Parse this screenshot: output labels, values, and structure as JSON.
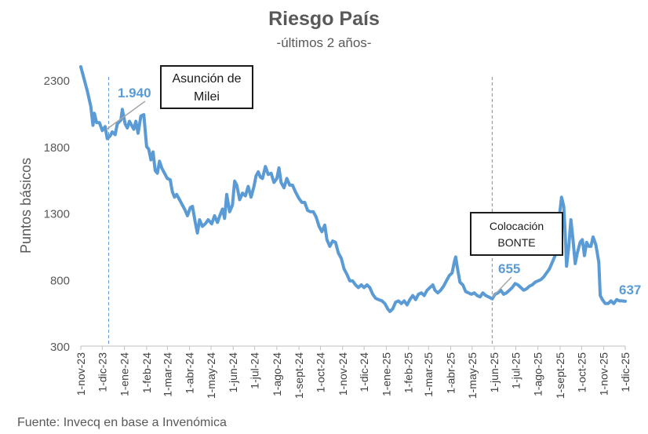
{
  "title": "Riesgo País",
  "subtitle": "-últimos 2 años-",
  "source": "Fuente: Invecq en base a Invenómica",
  "colors": {
    "line": "#5b9bd5",
    "axis": "#bfbfbf",
    "text": "#595959"
  },
  "annotations": {
    "milei": {
      "label": "Asunción de Milei",
      "value_label": "1.940",
      "date": "2023-12-10",
      "value": 1940
    },
    "bonte": {
      "label": "Colocación BONTE",
      "value_label": "655",
      "date": "2025-05-29",
      "value": 655
    },
    "last": {
      "value_label": "637",
      "date": "2025-12-01",
      "value": 637
    }
  },
  "chart_data": {
    "type": "line",
    "title": "Riesgo País",
    "subtitle": "-últimos 2 años-",
    "xlabel": "",
    "ylabel": "Puntos básicos",
    "ylim": [
      300,
      2300
    ],
    "yticks": [
      300,
      800,
      1300,
      1800,
      2300
    ],
    "xlim": [
      "2023-11-01",
      "2025-12-01"
    ],
    "xtick_dates": [
      "2023-11-01",
      "2023-12-01",
      "2024-01-01",
      "2024-02-01",
      "2024-03-01",
      "2024-04-01",
      "2024-05-01",
      "2024-06-01",
      "2024-07-01",
      "2024-08-01",
      "2024-09-01",
      "2024-10-01",
      "2024-11-01",
      "2024-12-01",
      "2025-01-01",
      "2025-02-01",
      "2025-03-01",
      "2025-04-01",
      "2025-05-01",
      "2025-06-01",
      "2025-07-01",
      "2025-08-01",
      "2025-09-01",
      "2025-10-01",
      "2025-11-01",
      "2025-12-01"
    ],
    "xtick_labels": [
      "1-nov-23",
      "1-dic-23",
      "1-ene-24",
      "1-feb-24",
      "1-mar-24",
      "1-abr-24",
      "1-may-24",
      "1-jun-24",
      "1-jul-24",
      "1-ago-24",
      "1-sept-24",
      "1-oct-24",
      "1-nov-24",
      "1-dic-24",
      "1-ene-25",
      "1-feb-25",
      "1-mar-25",
      "1-abr-25",
      "1-may-25",
      "1-jun-25",
      "1-jul-25",
      "1-ago-25",
      "1-sept-25",
      "1-oct-25",
      "1-nov-25",
      "1-dic-25"
    ],
    "grid": false,
    "legend": "none",
    "series": [
      {
        "points": [
          [
            "2023-11-01",
            2400
          ],
          [
            "2023-11-03",
            2360
          ],
          [
            "2023-11-10",
            2220
          ],
          [
            "2023-11-15",
            2100
          ],
          [
            "2023-11-18",
            1960
          ],
          [
            "2023-11-20",
            2050
          ],
          [
            "2023-11-23",
            1980
          ],
          [
            "2023-11-27",
            1980
          ],
          [
            "2023-12-01",
            1920
          ],
          [
            "2023-12-05",
            1950
          ],
          [
            "2023-12-08",
            1860
          ],
          [
            "2023-12-12",
            1880
          ],
          [
            "2023-12-15",
            1910
          ],
          [
            "2023-12-19",
            1890
          ],
          [
            "2023-12-22",
            1970
          ],
          [
            "2023-12-27",
            2000
          ],
          [
            "2023-12-29",
            2080
          ],
          [
            "2024-01-02",
            1970
          ],
          [
            "2024-01-05",
            1940
          ],
          [
            "2024-01-08",
            1990
          ],
          [
            "2024-01-11",
            1960
          ],
          [
            "2024-01-14",
            1930
          ],
          [
            "2024-01-17",
            1990
          ],
          [
            "2024-01-20",
            1900
          ],
          [
            "2024-01-24",
            2030
          ],
          [
            "2024-01-28",
            2040
          ],
          [
            "2024-02-01",
            1800
          ],
          [
            "2024-02-04",
            1780
          ],
          [
            "2024-02-07",
            1700
          ],
          [
            "2024-02-10",
            1760
          ],
          [
            "2024-02-13",
            1620
          ],
          [
            "2024-02-16",
            1600
          ],
          [
            "2024-02-19",
            1690
          ],
          [
            "2024-02-22",
            1640
          ],
          [
            "2024-02-26",
            1600
          ],
          [
            "2024-03-01",
            1560
          ],
          [
            "2024-03-05",
            1550
          ],
          [
            "2024-03-08",
            1460
          ],
          [
            "2024-03-11",
            1420
          ],
          [
            "2024-03-14",
            1440
          ],
          [
            "2024-03-18",
            1400
          ],
          [
            "2024-03-22",
            1360
          ],
          [
            "2024-03-26",
            1320
          ],
          [
            "2024-03-29",
            1280
          ],
          [
            "2024-04-02",
            1340
          ],
          [
            "2024-04-05",
            1350
          ],
          [
            "2024-04-09",
            1230
          ],
          [
            "2024-04-12",
            1150
          ],
          [
            "2024-04-15",
            1250
          ],
          [
            "2024-04-19",
            1200
          ],
          [
            "2024-04-23",
            1220
          ],
          [
            "2024-04-27",
            1250
          ],
          [
            "2024-05-02",
            1220
          ],
          [
            "2024-05-06",
            1280
          ],
          [
            "2024-05-10",
            1230
          ],
          [
            "2024-05-14",
            1290
          ],
          [
            "2024-05-17",
            1330
          ],
          [
            "2024-05-20",
            1260
          ],
          [
            "2024-05-23",
            1440
          ],
          [
            "2024-05-27",
            1310
          ],
          [
            "2024-05-31",
            1360
          ],
          [
            "2024-06-03",
            1540
          ],
          [
            "2024-06-06",
            1510
          ],
          [
            "2024-06-10",
            1400
          ],
          [
            "2024-06-14",
            1450
          ],
          [
            "2024-06-18",
            1430
          ],
          [
            "2024-06-22",
            1500
          ],
          [
            "2024-06-26",
            1420
          ],
          [
            "2024-06-30",
            1500
          ],
          [
            "2024-07-03",
            1580
          ],
          [
            "2024-07-06",
            1610
          ],
          [
            "2024-07-09",
            1570
          ],
          [
            "2024-07-12",
            1560
          ],
          [
            "2024-07-16",
            1650
          ],
          [
            "2024-07-20",
            1590
          ],
          [
            "2024-07-24",
            1600
          ],
          [
            "2024-07-28",
            1530
          ],
          [
            "2024-08-01",
            1560
          ],
          [
            "2024-08-04",
            1640
          ],
          [
            "2024-08-07",
            1530
          ],
          [
            "2024-08-11",
            1490
          ],
          [
            "2024-08-15",
            1560
          ],
          [
            "2024-08-19",
            1510
          ],
          [
            "2024-08-23",
            1510
          ],
          [
            "2024-08-27",
            1460
          ],
          [
            "2024-09-01",
            1410
          ],
          [
            "2024-09-05",
            1380
          ],
          [
            "2024-09-09",
            1380
          ],
          [
            "2024-09-13",
            1320
          ],
          [
            "2024-09-17",
            1310
          ],
          [
            "2024-09-21",
            1310
          ],
          [
            "2024-09-25",
            1270
          ],
          [
            "2024-09-29",
            1200
          ],
          [
            "2024-10-03",
            1160
          ],
          [
            "2024-10-07",
            1210
          ],
          [
            "2024-10-10",
            1100
          ],
          [
            "2024-10-14",
            1050
          ],
          [
            "2024-10-18",
            1090
          ],
          [
            "2024-10-22",
            1080
          ],
          [
            "2024-10-26",
            1000
          ],
          [
            "2024-10-30",
            960
          ],
          [
            "2024-11-03",
            880
          ],
          [
            "2024-11-07",
            840
          ],
          [
            "2024-11-11",
            790
          ],
          [
            "2024-11-15",
            790
          ],
          [
            "2024-11-19",
            760
          ],
          [
            "2024-11-23",
            740
          ],
          [
            "2024-11-27",
            760
          ],
          [
            "2024-12-01",
            740
          ],
          [
            "2024-12-05",
            760
          ],
          [
            "2024-12-09",
            740
          ],
          [
            "2024-12-13",
            690
          ],
          [
            "2024-12-17",
            660
          ],
          [
            "2024-12-21",
            650
          ],
          [
            "2024-12-26",
            640
          ],
          [
            "2024-12-30",
            620
          ],
          [
            "2025-01-03",
            580
          ],
          [
            "2025-01-06",
            560
          ],
          [
            "2025-01-10",
            580
          ],
          [
            "2025-01-14",
            630
          ],
          [
            "2025-01-18",
            640
          ],
          [
            "2025-01-22",
            620
          ],
          [
            "2025-01-26",
            640
          ],
          [
            "2025-01-30",
            610
          ],
          [
            "2025-02-03",
            650
          ],
          [
            "2025-02-07",
            680
          ],
          [
            "2025-02-11",
            650
          ],
          [
            "2025-02-15",
            690
          ],
          [
            "2025-02-19",
            700
          ],
          [
            "2025-02-23",
            680
          ],
          [
            "2025-02-27",
            720
          ],
          [
            "2025-03-03",
            740
          ],
          [
            "2025-03-07",
            760
          ],
          [
            "2025-03-10",
            720
          ],
          [
            "2025-03-14",
            700
          ],
          [
            "2025-03-18",
            720
          ],
          [
            "2025-03-22",
            750
          ],
          [
            "2025-03-26",
            790
          ],
          [
            "2025-03-30",
            830
          ],
          [
            "2025-04-03",
            850
          ],
          [
            "2025-04-06",
            930
          ],
          [
            "2025-04-08",
            970
          ],
          [
            "2025-04-10",
            900
          ],
          [
            "2025-04-14",
            780
          ],
          [
            "2025-04-18",
            760
          ],
          [
            "2025-04-22",
            710
          ],
          [
            "2025-04-26",
            700
          ],
          [
            "2025-04-30",
            690
          ],
          [
            "2025-05-04",
            700
          ],
          [
            "2025-05-08",
            680
          ],
          [
            "2025-05-12",
            670
          ],
          [
            "2025-05-16",
            700
          ],
          [
            "2025-05-20",
            680
          ],
          [
            "2025-05-24",
            670
          ],
          [
            "2025-05-29",
            655
          ],
          [
            "2025-06-02",
            690
          ],
          [
            "2025-06-06",
            700
          ],
          [
            "2025-06-10",
            720
          ],
          [
            "2025-06-14",
            690
          ],
          [
            "2025-06-18",
            700
          ],
          [
            "2025-06-22",
            720
          ],
          [
            "2025-06-26",
            740
          ],
          [
            "2025-06-30",
            770
          ],
          [
            "2025-07-04",
            760
          ],
          [
            "2025-07-08",
            740
          ],
          [
            "2025-07-12",
            720
          ],
          [
            "2025-07-16",
            730
          ],
          [
            "2025-07-20",
            750
          ],
          [
            "2025-07-24",
            760
          ],
          [
            "2025-07-28",
            780
          ],
          [
            "2025-08-01",
            790
          ],
          [
            "2025-08-05",
            800
          ],
          [
            "2025-08-09",
            820
          ],
          [
            "2025-08-13",
            850
          ],
          [
            "2025-08-17",
            880
          ],
          [
            "2025-08-21",
            930
          ],
          [
            "2025-08-25",
            980
          ],
          [
            "2025-08-28",
            1100
          ],
          [
            "2025-08-31",
            1280
          ],
          [
            "2025-09-03",
            1420
          ],
          [
            "2025-09-06",
            1350
          ],
          [
            "2025-09-08",
            1150
          ],
          [
            "2025-09-10",
            900
          ],
          [
            "2025-09-13",
            1050
          ],
          [
            "2025-09-16",
            1250
          ],
          [
            "2025-09-19",
            1100
          ],
          [
            "2025-09-22",
            920
          ],
          [
            "2025-09-25",
            1000
          ],
          [
            "2025-09-29",
            1080
          ],
          [
            "2025-10-02",
            1100
          ],
          [
            "2025-10-05",
            980
          ],
          [
            "2025-10-08",
            1080
          ],
          [
            "2025-10-11",
            1050
          ],
          [
            "2025-10-14",
            1050
          ],
          [
            "2025-10-17",
            1120
          ],
          [
            "2025-10-21",
            1060
          ],
          [
            "2025-10-25",
            930
          ],
          [
            "2025-10-27",
            680
          ],
          [
            "2025-10-30",
            650
          ],
          [
            "2025-11-03",
            620
          ],
          [
            "2025-11-07",
            620
          ],
          [
            "2025-11-11",
            640
          ],
          [
            "2025-11-15",
            620
          ],
          [
            "2025-11-19",
            650
          ],
          [
            "2025-11-23",
            640
          ],
          [
            "2025-11-27",
            640
          ],
          [
            "2025-12-01",
            637
          ]
        ]
      }
    ]
  }
}
